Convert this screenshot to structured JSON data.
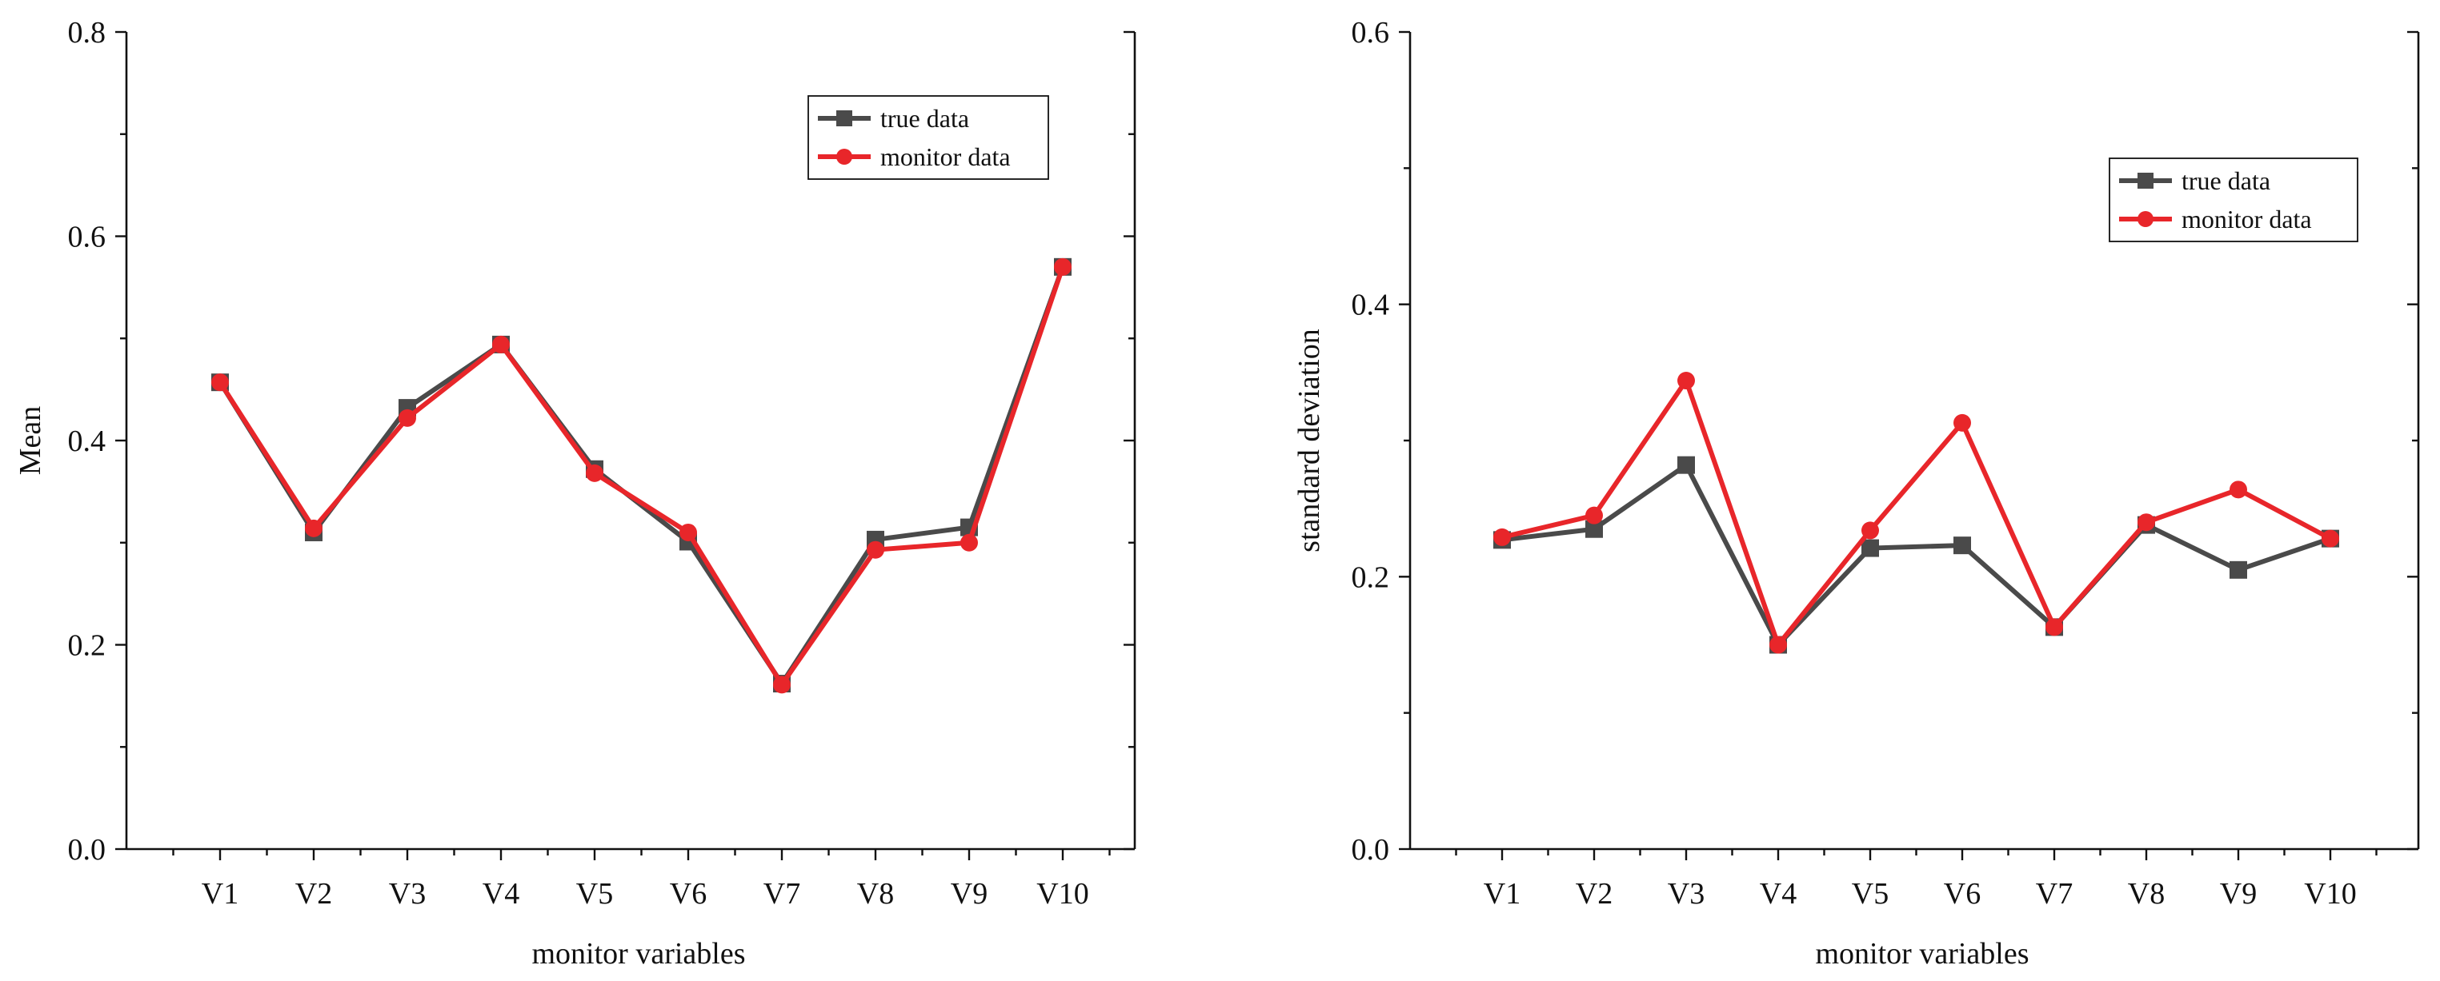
{
  "chart_data": [
    {
      "id": "mean",
      "type": "line",
      "title": "",
      "xlabel": "monitor variables",
      "ylabel": "Mean",
      "categories": [
        "V1",
        "V2",
        "V3",
        "V4",
        "V5",
        "V6",
        "V7",
        "V8",
        "V9",
        "V10"
      ],
      "ylim": [
        0,
        0.8
      ],
      "yticks": [
        0.0,
        0.2,
        0.4,
        0.6,
        0.8
      ],
      "ytick_labels": [
        "0.0",
        "0.2",
        "0.4",
        "0.6",
        "0.8"
      ],
      "legend_position": "top-right",
      "grid": false,
      "series": [
        {
          "name": "true data",
          "color": "#4a4a4a",
          "marker": "square",
          "values": [
            0.457,
            0.31,
            0.432,
            0.494,
            0.372,
            0.301,
            0.162,
            0.303,
            0.315,
            0.57
          ]
        },
        {
          "name": "monitor data",
          "color": "#e8262a",
          "marker": "circle",
          "values": [
            0.457,
            0.314,
            0.422,
            0.494,
            0.368,
            0.31,
            0.161,
            0.293,
            0.3,
            0.57
          ]
        }
      ]
    },
    {
      "id": "std",
      "type": "line",
      "title": "",
      "xlabel": "monitor variables",
      "ylabel": "standard deviation",
      "categories": [
        "V1",
        "V2",
        "V3",
        "V4",
        "V5",
        "V6",
        "V7",
        "V8",
        "V9",
        "V10"
      ],
      "ylim": [
        0,
        0.6
      ],
      "yticks": [
        0.0,
        0.2,
        0.4,
        0.6
      ],
      "ytick_labels": [
        "0.0",
        "0.2",
        "0.4",
        "0.6"
      ],
      "legend_position": "upper-right",
      "grid": false,
      "series": [
        {
          "name": "true data",
          "color": "#4a4a4a",
          "marker": "square",
          "values": [
            0.227,
            0.235,
            0.282,
            0.15,
            0.221,
            0.223,
            0.163,
            0.238,
            0.205,
            0.228
          ]
        },
        {
          "name": "monitor data",
          "color": "#e8262a",
          "marker": "circle",
          "values": [
            0.229,
            0.245,
            0.344,
            0.15,
            0.234,
            0.313,
            0.163,
            0.24,
            0.264,
            0.228
          ]
        }
      ]
    }
  ]
}
